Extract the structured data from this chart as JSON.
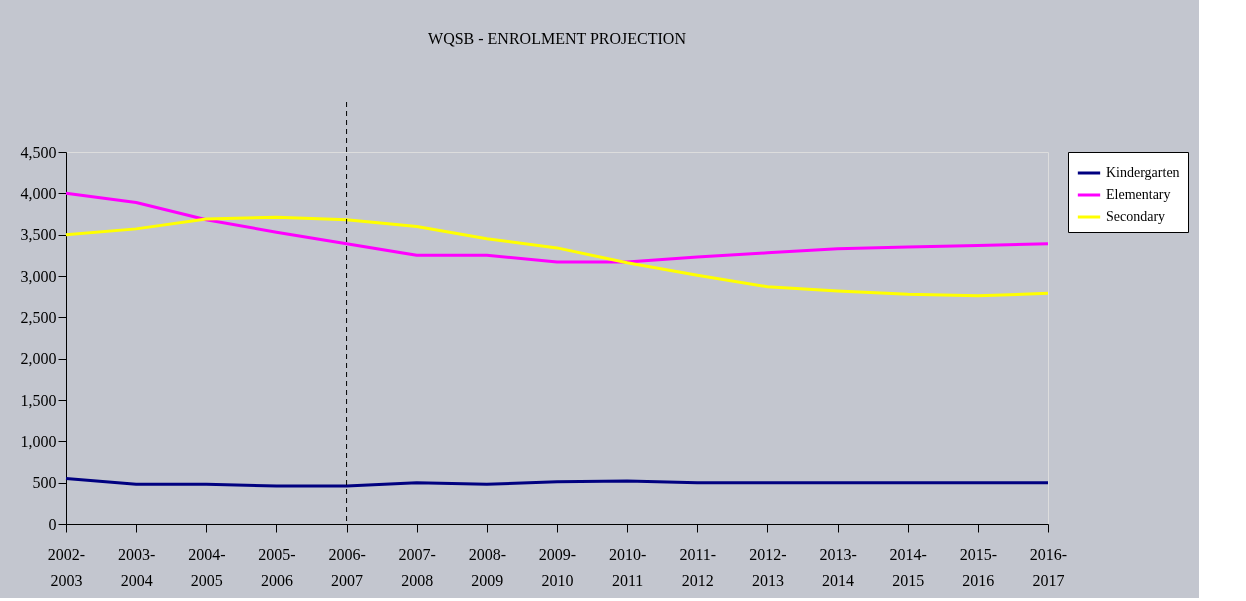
{
  "chart_data": {
    "type": "line",
    "title": "WQSB - ENROLMENT PROJECTION",
    "categories": [
      "2002-2003",
      "2003-2004",
      "2004-2005",
      "2005-2006",
      "2006-2007",
      "2007-2008",
      "2008-2009",
      "2009-2010",
      "2010-2011",
      "2011-2012",
      "2012-2013",
      "2013-2014",
      "2014-2015",
      "2015-2016",
      "2016-2017"
    ],
    "series": [
      {
        "name": "Kindergarten",
        "color": "#000080",
        "values": [
          550,
          480,
          480,
          460,
          460,
          500,
          480,
          510,
          520,
          500,
          500,
          500,
          500,
          500,
          500
        ]
      },
      {
        "name": "Elementary",
        "color": "#ff00ff",
        "values": [
          4000,
          3890,
          3680,
          3530,
          3390,
          3250,
          3250,
          3170,
          3170,
          3230,
          3280,
          3330,
          3350,
          3370,
          3390
        ]
      },
      {
        "name": "Secondary",
        "color": "#ffff00",
        "values": [
          3500,
          3570,
          3690,
          3710,
          3680,
          3600,
          3450,
          3340,
          3160,
          3010,
          2870,
          2820,
          2780,
          2760,
          2790
        ]
      }
    ],
    "ylim": [
      0,
      4500
    ],
    "yticks": [
      0,
      500,
      {
        "value": 1000,
        "label": "1,000"
      },
      {
        "value": 1500,
        "label": "1,500"
      },
      {
        "value": 2000,
        "label": "2,000"
      },
      {
        "value": 2500,
        "label": "2,500"
      },
      {
        "value": 3000,
        "label": "3,000"
      },
      {
        "value": 3500,
        "label": "3,500"
      },
      {
        "value": 4000,
        "label": "4,000"
      },
      {
        "value": 4500,
        "label": "4,500"
      }
    ],
    "ref_lines": [
      {
        "axis": "x",
        "value": "2006-2007",
        "line_style": "dashed",
        "color": "#000000"
      }
    ],
    "grid": false,
    "legend": "right",
    "marker": "none",
    "line_style": "solid"
  }
}
